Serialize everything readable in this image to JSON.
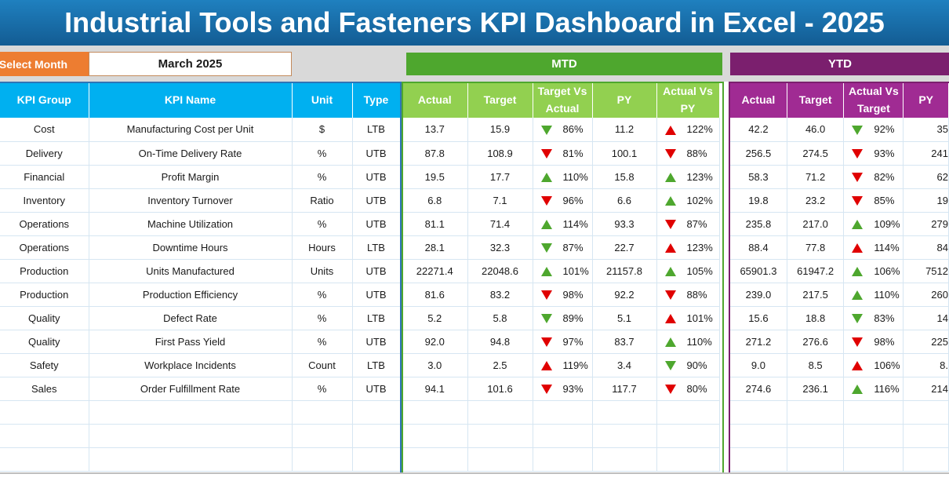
{
  "title": "Industrial Tools and Fasteners KPI Dashboard in Excel - 2025",
  "select_month": {
    "label": "Select Month",
    "value": "March 2025"
  },
  "sections": {
    "mtd": "MTD",
    "ytd": "YTD"
  },
  "colors": {
    "up_green": "#4ea72e",
    "up_red": "#e00000",
    "down_red": "#e00000",
    "down_green": "#4ea72e"
  },
  "kpi_headers": [
    "KPI Group",
    "KPI Name",
    "Unit",
    "Type"
  ],
  "mtd_headers": [
    "Actual",
    "Target",
    "Target Vs Actual",
    "PY",
    "Actual Vs PY"
  ],
  "ytd_headers": [
    "Actual",
    "Target",
    "Actual Vs Target",
    "PY"
  ],
  "rows": [
    {
      "group": "Cost",
      "name": "Manufacturing Cost per Unit",
      "unit": "$",
      "type": "LTB",
      "mtd": {
        "actual": "13.7",
        "target": "15.9",
        "tva": "86%",
        "tva_dir": "down",
        "tva_color": "green",
        "py": "11.2",
        "avp": "122%",
        "avp_dir": "up",
        "avp_color": "red"
      },
      "ytd": {
        "actual": "42.2",
        "target": "46.0",
        "avt": "92%",
        "avt_dir": "down",
        "avt_color": "green",
        "py": "35"
      }
    },
    {
      "group": "Delivery",
      "name": "On-Time Delivery Rate",
      "unit": "%",
      "type": "UTB",
      "mtd": {
        "actual": "87.8",
        "target": "108.9",
        "tva": "81%",
        "tva_dir": "down",
        "tva_color": "red",
        "py": "100.1",
        "avp": "88%",
        "avp_dir": "down",
        "avp_color": "red"
      },
      "ytd": {
        "actual": "256.5",
        "target": "274.5",
        "avt": "93%",
        "avt_dir": "down",
        "avt_color": "red",
        "py": "241"
      }
    },
    {
      "group": "Financial",
      "name": "Profit Margin",
      "unit": "%",
      "type": "UTB",
      "mtd": {
        "actual": "19.5",
        "target": "17.7",
        "tva": "110%",
        "tva_dir": "up",
        "tva_color": "green",
        "py": "15.8",
        "avp": "123%",
        "avp_dir": "up",
        "avp_color": "green"
      },
      "ytd": {
        "actual": "58.3",
        "target": "71.2",
        "avt": "82%",
        "avt_dir": "down",
        "avt_color": "red",
        "py": "62"
      }
    },
    {
      "group": "Inventory",
      "name": "Inventory Turnover",
      "unit": "Ratio",
      "type": "UTB",
      "mtd": {
        "actual": "6.8",
        "target": "7.1",
        "tva": "96%",
        "tva_dir": "down",
        "tva_color": "red",
        "py": "6.6",
        "avp": "102%",
        "avp_dir": "up",
        "avp_color": "green"
      },
      "ytd": {
        "actual": "19.8",
        "target": "23.2",
        "avt": "85%",
        "avt_dir": "down",
        "avt_color": "red",
        "py": "19"
      }
    },
    {
      "group": "Operations",
      "name": "Machine Utilization",
      "unit": "%",
      "type": "UTB",
      "mtd": {
        "actual": "81.1",
        "target": "71.4",
        "tva": "114%",
        "tva_dir": "up",
        "tva_color": "green",
        "py": "93.3",
        "avp": "87%",
        "avp_dir": "down",
        "avp_color": "red"
      },
      "ytd": {
        "actual": "235.8",
        "target": "217.0",
        "avt": "109%",
        "avt_dir": "up",
        "avt_color": "green",
        "py": "279"
      }
    },
    {
      "group": "Operations",
      "name": "Downtime Hours",
      "unit": "Hours",
      "type": "LTB",
      "mtd": {
        "actual": "28.1",
        "target": "32.3",
        "tva": "87%",
        "tva_dir": "down",
        "tva_color": "green",
        "py": "22.7",
        "avp": "123%",
        "avp_dir": "up",
        "avp_color": "red"
      },
      "ytd": {
        "actual": "88.4",
        "target": "77.8",
        "avt": "114%",
        "avt_dir": "up",
        "avt_color": "red",
        "py": "84"
      }
    },
    {
      "group": "Production",
      "name": "Units Manufactured",
      "unit": "Units",
      "type": "UTB",
      "mtd": {
        "actual": "22271.4",
        "target": "22048.6",
        "tva": "101%",
        "tva_dir": "up",
        "tva_color": "green",
        "py": "21157.8",
        "avp": "105%",
        "avp_dir": "up",
        "avp_color": "green"
      },
      "ytd": {
        "actual": "65901.3",
        "target": "61947.2",
        "avt": "106%",
        "avt_dir": "up",
        "avt_color": "green",
        "py": "7512"
      }
    },
    {
      "group": "Production",
      "name": "Production Efficiency",
      "unit": "%",
      "type": "UTB",
      "mtd": {
        "actual": "81.6",
        "target": "83.2",
        "tva": "98%",
        "tva_dir": "down",
        "tva_color": "red",
        "py": "92.2",
        "avp": "88%",
        "avp_dir": "down",
        "avp_color": "red"
      },
      "ytd": {
        "actual": "239.0",
        "target": "217.5",
        "avt": "110%",
        "avt_dir": "up",
        "avt_color": "green",
        "py": "260"
      }
    },
    {
      "group": "Quality",
      "name": "Defect Rate",
      "unit": "%",
      "type": "LTB",
      "mtd": {
        "actual": "5.2",
        "target": "5.8",
        "tva": "89%",
        "tva_dir": "down",
        "tva_color": "green",
        "py": "5.1",
        "avp": "101%",
        "avp_dir": "up",
        "avp_color": "red"
      },
      "ytd": {
        "actual": "15.6",
        "target": "18.8",
        "avt": "83%",
        "avt_dir": "down",
        "avt_color": "green",
        "py": "14"
      }
    },
    {
      "group": "Quality",
      "name": "First Pass Yield",
      "unit": "%",
      "type": "UTB",
      "mtd": {
        "actual": "92.0",
        "target": "94.8",
        "tva": "97%",
        "tva_dir": "down",
        "tva_color": "red",
        "py": "83.7",
        "avp": "110%",
        "avp_dir": "up",
        "avp_color": "green"
      },
      "ytd": {
        "actual": "271.2",
        "target": "276.6",
        "avt": "98%",
        "avt_dir": "down",
        "avt_color": "red",
        "py": "225"
      }
    },
    {
      "group": "Safety",
      "name": "Workplace Incidents",
      "unit": "Count",
      "type": "LTB",
      "mtd": {
        "actual": "3.0",
        "target": "2.5",
        "tva": "119%",
        "tva_dir": "up",
        "tva_color": "red",
        "py": "3.4",
        "avp": "90%",
        "avp_dir": "down",
        "avp_color": "green"
      },
      "ytd": {
        "actual": "9.0",
        "target": "8.5",
        "avt": "106%",
        "avt_dir": "up",
        "avt_color": "red",
        "py": "8."
      }
    },
    {
      "group": "Sales",
      "name": "Order Fulfillment Rate",
      "unit": "%",
      "type": "UTB",
      "mtd": {
        "actual": "94.1",
        "target": "101.6",
        "tva": "93%",
        "tva_dir": "down",
        "tva_color": "red",
        "py": "117.7",
        "avp": "80%",
        "avp_dir": "down",
        "avp_color": "red"
      },
      "ytd": {
        "actual": "274.6",
        "target": "236.1",
        "avt": "116%",
        "avt_dir": "up",
        "avt_color": "green",
        "py": "214"
      }
    }
  ],
  "empty_rows": 3
}
